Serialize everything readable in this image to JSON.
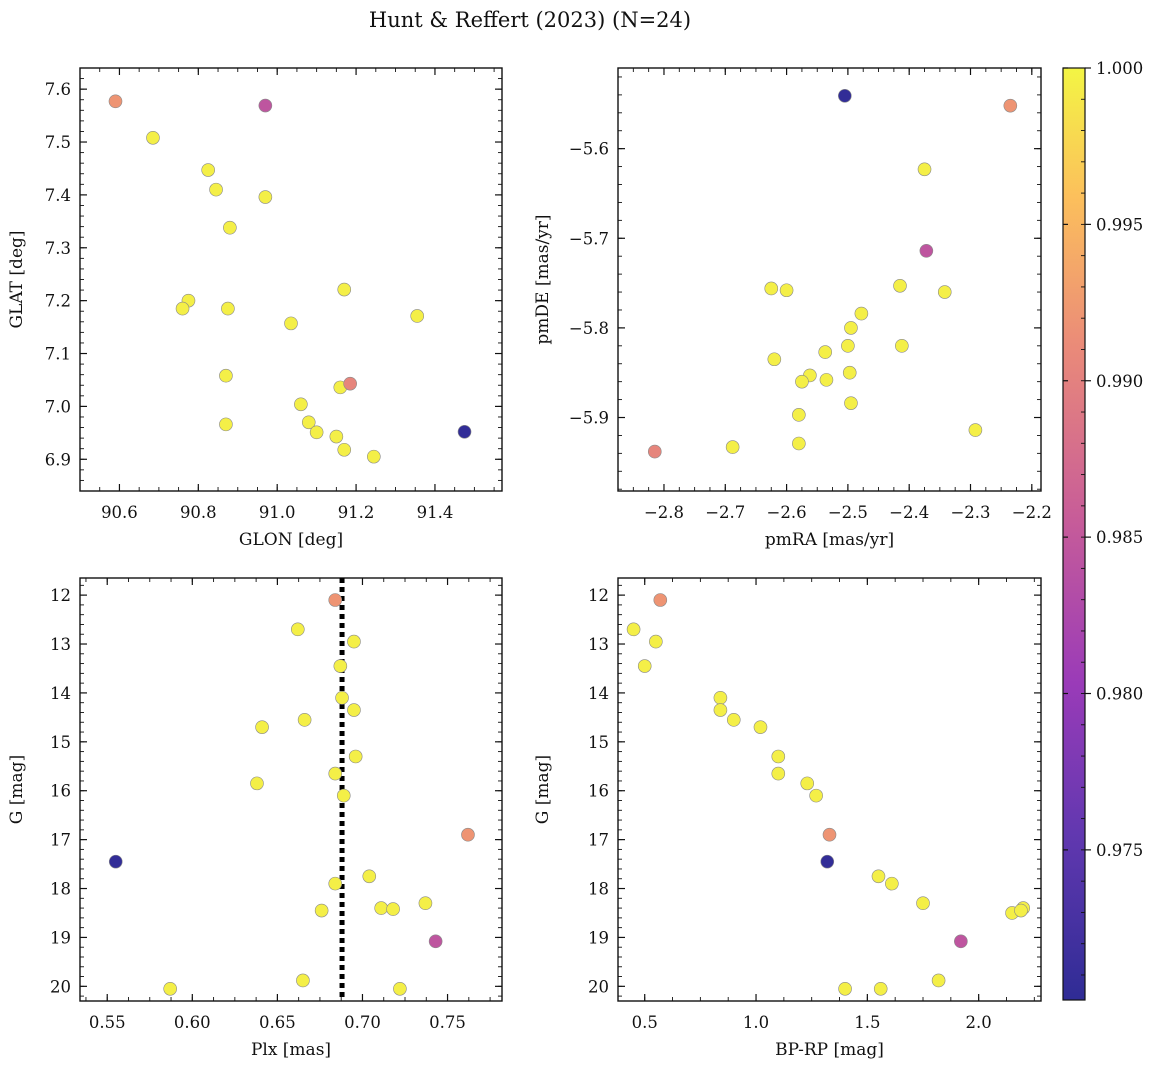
{
  "figure": {
    "title": "Hunt & Reffert (2023) (N=24)"
  },
  "chart_data": [
    {
      "type": "scatter",
      "id": "glon_glat",
      "xlabel": "GLON [deg]",
      "ylabel": "GLAT [deg]",
      "xlim": [
        90.5,
        91.57
      ],
      "ylim": [
        6.84,
        7.64
      ],
      "y_inverted": false,
      "xticks": [
        90.6,
        90.8,
        91.0,
        91.2,
        91.4
      ],
      "yticks": [
        6.9,
        7.0,
        7.1,
        7.2,
        7.3,
        7.4,
        7.5,
        7.6
      ],
      "x": [
        90.59,
        90.97,
        90.685,
        90.825,
        90.845,
        90.97,
        90.88,
        90.775,
        90.76,
        90.875,
        91.17,
        91.355,
        91.035,
        90.87,
        91.185,
        91.16,
        91.06,
        91.08,
        91.1,
        91.15,
        91.17,
        91.245,
        90.87,
        91.475
      ],
      "y": [
        7.577,
        7.569,
        7.508,
        7.447,
        7.41,
        7.396,
        7.338,
        7.2,
        7.185,
        7.185,
        7.221,
        7.171,
        7.157,
        7.058,
        7.043,
        7.036,
        7.004,
        6.97,
        6.951,
        6.943,
        6.918,
        6.905,
        6.966,
        6.952
      ],
      "colors": [
        0.992,
        0.9845,
        0.9995,
        0.9995,
        0.9995,
        0.9995,
        0.9995,
        0.9995,
        0.9995,
        0.9995,
        0.9995,
        0.9995,
        0.9995,
        0.9995,
        0.9905,
        0.9995,
        0.9995,
        0.9995,
        0.9995,
        0.9995,
        0.9995,
        0.9995,
        0.9995,
        0.9705
      ]
    },
    {
      "type": "scatter",
      "id": "pmra_pmde",
      "xlabel": "pmRA [mas/yr]",
      "ylabel": "pmDE [mas/yr]",
      "xlim": [
        -2.875,
        -2.185
      ],
      "ylim": [
        -5.982,
        -5.51
      ],
      "y_inverted": false,
      "xticks": [
        -2.8,
        -2.7,
        -2.6,
        -2.5,
        -2.4,
        -2.3,
        -2.2
      ],
      "yticks": [
        -5.9,
        -5.8,
        -5.7,
        -5.6
      ],
      "x": [
        -2.505,
        -2.235,
        -2.375,
        -2.372,
        -2.625,
        -2.6,
        -2.415,
        -2.342,
        -2.478,
        -2.495,
        -2.412,
        -2.5,
        -2.537,
        -2.62,
        -2.562,
        -2.575,
        -2.535,
        -2.497,
        -2.495,
        -2.58,
        -2.58,
        -2.292,
        -2.688,
        -2.815
      ],
      "y": [
        -5.541,
        -5.552,
        -5.623,
        -5.714,
        -5.756,
        -5.758,
        -5.753,
        -5.76,
        -5.784,
        -5.8,
        -5.82,
        -5.82,
        -5.827,
        -5.835,
        -5.853,
        -5.86,
        -5.858,
        -5.85,
        -5.884,
        -5.897,
        -5.929,
        -5.914,
        -5.933,
        -5.938
      ],
      "colors": [
        0.9705,
        0.992,
        0.9995,
        0.9845,
        0.9995,
        0.9995,
        0.9995,
        0.9995,
        0.9995,
        0.9995,
        0.9995,
        0.9995,
        0.9995,
        0.9995,
        0.9995,
        0.9995,
        0.9995,
        0.9995,
        0.9995,
        0.9995,
        0.9995,
        0.9995,
        0.9995,
        0.9905
      ]
    },
    {
      "type": "scatter",
      "id": "plx_g",
      "xlabel": "Plx [mas]",
      "ylabel": "G [mag]",
      "xlim": [
        0.534,
        0.782
      ],
      "ylim": [
        11.65,
        20.3
      ],
      "y_inverted": true,
      "xticks": [
        0.55,
        0.6,
        0.65,
        0.7,
        0.75
      ],
      "yticks": [
        12,
        13,
        14,
        15,
        16,
        17,
        18,
        19,
        20
      ],
      "vline": 0.688,
      "x": [
        0.684,
        0.662,
        0.695,
        0.687,
        0.688,
        0.695,
        0.666,
        0.641,
        0.696,
        0.684,
        0.689,
        0.638,
        0.762,
        0.555,
        0.704,
        0.684,
        0.676,
        0.711,
        0.718,
        0.737,
        0.743,
        0.665,
        0.587,
        0.722
      ],
      "y": [
        12.1,
        12.7,
        12.95,
        13.45,
        14.1,
        14.35,
        14.55,
        14.7,
        15.3,
        15.65,
        16.1,
        15.85,
        16.9,
        17.45,
        17.75,
        17.9,
        18.45,
        18.4,
        18.42,
        18.3,
        19.08,
        19.88,
        20.05,
        20.05
      ],
      "colors": [
        0.992,
        0.9995,
        0.9995,
        0.9995,
        0.9995,
        0.9995,
        0.9995,
        0.9995,
        0.9995,
        0.9995,
        0.9995,
        0.9995,
        0.992,
        0.9705,
        0.9995,
        0.9995,
        0.9995,
        0.9995,
        0.9995,
        0.9995,
        0.9845,
        0.9995,
        0.9995,
        0.9995
      ]
    },
    {
      "type": "scatter",
      "id": "bprp_g",
      "xlabel": "BP-RP [mag]",
      "ylabel": "G [mag]",
      "xlim": [
        0.38,
        2.28
      ],
      "ylim": [
        11.65,
        20.3
      ],
      "y_inverted": true,
      "xticks": [
        0.5,
        1.0,
        1.5,
        2.0
      ],
      "yticks": [
        12,
        13,
        14,
        15,
        16,
        17,
        18,
        19,
        20
      ],
      "x": [
        0.57,
        0.45,
        0.55,
        0.5,
        0.84,
        0.84,
        0.9,
        1.02,
        1.1,
        1.1,
        1.23,
        1.27,
        1.33,
        1.32,
        1.55,
        1.61,
        1.75,
        2.15,
        2.2,
        1.92,
        1.82,
        1.4,
        1.56,
        2.19
      ],
      "y": [
        12.1,
        12.7,
        12.95,
        13.45,
        14.1,
        14.35,
        14.55,
        14.7,
        15.3,
        15.65,
        15.85,
        16.1,
        16.9,
        17.45,
        17.75,
        17.9,
        18.3,
        18.5,
        18.4,
        19.08,
        19.88,
        20.05,
        20.05,
        18.45
      ],
      "colors": [
        0.992,
        0.9995,
        0.9995,
        0.9995,
        0.9995,
        0.9995,
        0.9995,
        0.9995,
        0.9995,
        0.9995,
        0.9995,
        0.9995,
        0.992,
        0.9705,
        0.9995,
        0.9995,
        0.9995,
        0.9995,
        0.9995,
        0.9845,
        0.9995,
        0.9995,
        0.9995,
        0.9995
      ]
    }
  ],
  "colorbar": {
    "colormap": "plasma",
    "range": [
      0.9702,
      1.0
    ],
    "ticks": [
      0.975,
      0.98,
      0.985,
      0.99,
      0.995,
      1.0
    ],
    "tick_labels": [
      "0.975",
      "0.980",
      "0.985",
      "0.990",
      "0.995",
      "1.000"
    ]
  }
}
